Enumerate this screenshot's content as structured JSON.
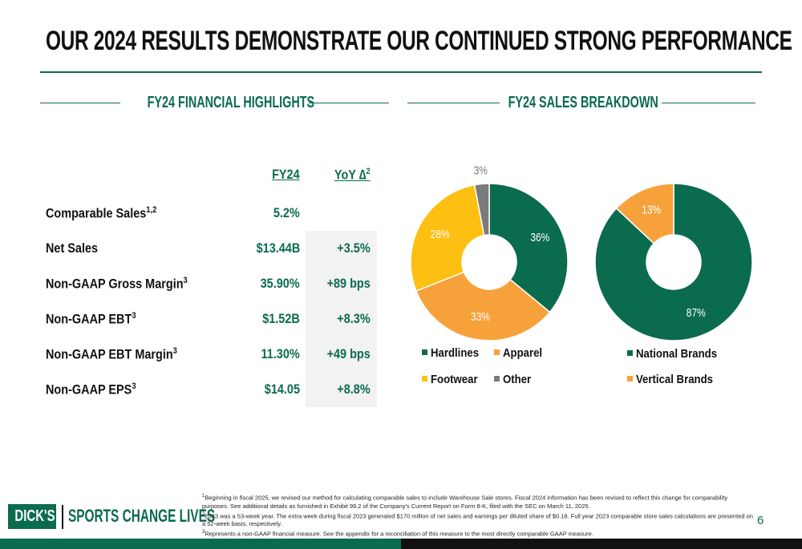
{
  "header": {
    "title": "OUR 2024 RESULTS DEMONSTRATE OUR CONTINUED STRONG PERFORMANCE"
  },
  "highlights": {
    "heading": "FY24 FINANCIAL HIGHLIGHTS",
    "columns": [
      {
        "text": "FY24"
      },
      {
        "text": "YoY ∆",
        "sup": "2"
      }
    ],
    "rows": [
      {
        "label": "Comparable Sales",
        "sup": "1,2",
        "fy24": "5.2%"
      },
      {
        "label": "Net Sales",
        "fy24": "$13.44B",
        "yoy": "+3.5%"
      },
      {
        "label": "Non-GAAP Gross Margin",
        "sup": "3",
        "fy24": "35.90%",
        "yoy": "+89 bps"
      },
      {
        "label": "Non-GAAP EBT",
        "sup": "3",
        "fy24": "$1.52B",
        "yoy": "+8.3%"
      },
      {
        "label": "Non-GAAP EBT Margin",
        "sup": "3",
        "fy24": "11.30%",
        "yoy": "+49 bps"
      },
      {
        "label": "Non-GAAP EPS",
        "sup": "3",
        "fy24": "$14.05",
        "yoy": "+8.8%"
      }
    ]
  },
  "breakdown": {
    "heading": "FY24 SALES BREAKDOWN"
  },
  "chart_data": [
    {
      "type": "pie",
      "donut": true,
      "categories": [
        "Hardlines",
        "Apparel",
        "Footwear",
        "Other"
      ],
      "values": [
        36,
        33,
        28,
        3
      ],
      "value_labels": [
        "36%",
        "33%",
        "28%",
        "3%"
      ],
      "colors": [
        "#0b6b4f",
        "#f7a13b",
        "#fdbf12",
        "#7b7b7b"
      ]
    },
    {
      "type": "pie",
      "donut": true,
      "categories": [
        "National Brands",
        "Vertical Brands"
      ],
      "values": [
        87,
        13
      ],
      "value_labels": [
        "87%",
        "13%"
      ],
      "colors": [
        "#0b6b4f",
        "#f7a13b"
      ]
    }
  ],
  "footer": {
    "logo": "DICK'S",
    "tagline": "SPORTS CHANGE LIVES",
    "page": "6",
    "notes": [
      {
        "marker": "1",
        "text": "Beginning in fiscal 2025, we revised our method for calculating comparable sales to include Warehouse Sale stores. Fiscal 2024 information has been revised to reflect this change for comparability purposes. See additional details as furnished in Exhibit 99.2 of the Company's Current Report on Form 8-K, filed with the SEC on March 11, 2025."
      },
      {
        "marker": "2",
        "text": "2023 was a 53-week year. The extra week during fiscal 2023 generated $170 million of net sales and earnings per diluted share of $0.18. Full year 2023 comparable store sales calculations are presented on a 52-week basis, respectively."
      },
      {
        "marker": "3",
        "text": "Represents a non-GAAP financial measure. See the appendix for a reconciliation of this measure to the most directly comparable GAAP measure."
      }
    ]
  }
}
